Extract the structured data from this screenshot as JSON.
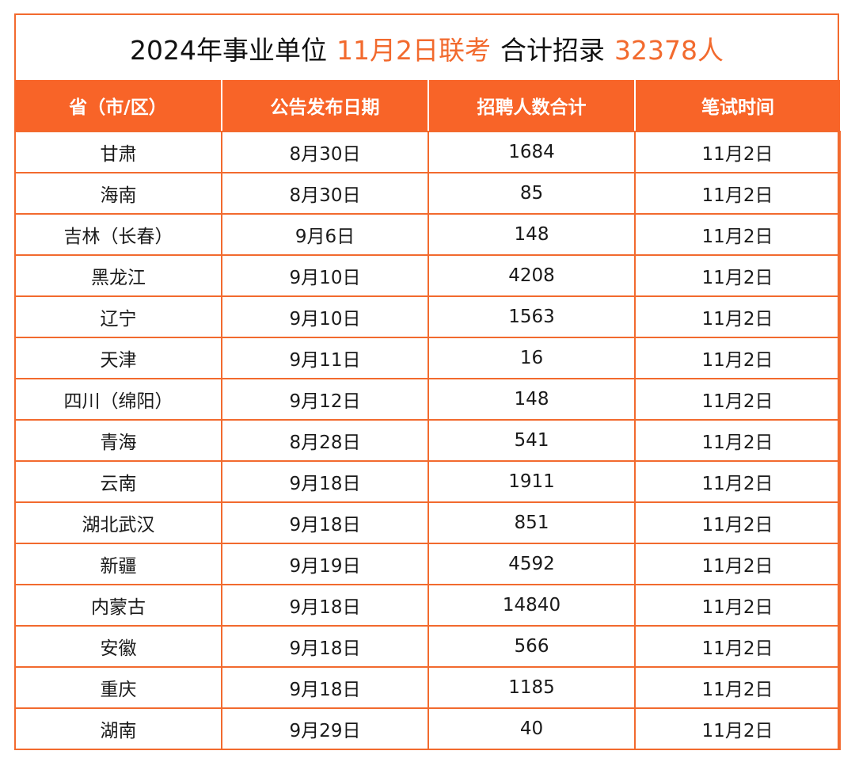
{
  "title": {
    "part1": "2024年事业单位",
    "highlight1": "11月2日联考",
    "part2": "合计招录",
    "highlight2": "32378人"
  },
  "table": {
    "headers": [
      "省（市/区）",
      "公告发布日期",
      "招聘人数合计",
      "笔试时间"
    ],
    "rows": [
      [
        "甘肃",
        "8月30日",
        "1684",
        "11月2日"
      ],
      [
        "海南",
        "8月30日",
        "85",
        "11月2日"
      ],
      [
        "吉林（长春）",
        "9月6日",
        "148",
        "11月2日"
      ],
      [
        "黑龙江",
        "9月10日",
        "4208",
        "11月2日"
      ],
      [
        "辽宁",
        "9月10日",
        "1563",
        "11月2日"
      ],
      [
        "天津",
        "9月11日",
        "16",
        "11月2日"
      ],
      [
        "四川（绵阳）",
        "9月12日",
        "148",
        "11月2日"
      ],
      [
        "青海",
        "8月28日",
        "541",
        "11月2日"
      ],
      [
        "云南",
        "9月18日",
        "1911",
        "11月2日"
      ],
      [
        "湖北武汉",
        "9月18日",
        "851",
        "11月2日"
      ],
      [
        "新疆",
        "9月19日",
        "4592",
        "11月2日"
      ],
      [
        "内蒙古",
        "9月18日",
        "14840",
        "11月2日"
      ],
      [
        "安徽",
        "9月18日",
        "566",
        "11月2日"
      ],
      [
        "重庆",
        "9月18日",
        "1185",
        "11月2日"
      ],
      [
        "湖南",
        "9月29日",
        "40",
        "11月2日"
      ]
    ]
  },
  "colors": {
    "accent": "#f26a2e",
    "header_bg": "#f86428",
    "text": "#1a1a1a"
  }
}
